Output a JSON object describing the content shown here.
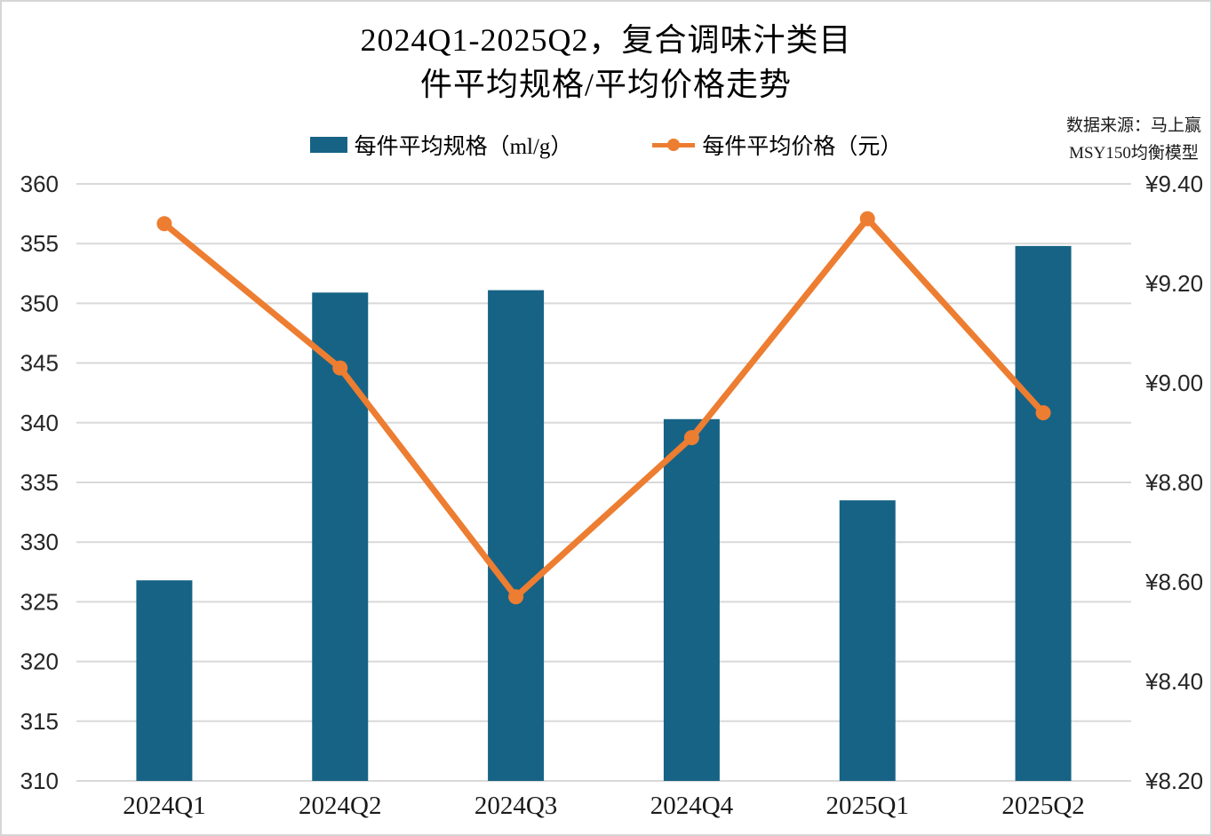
{
  "title": {
    "line1": "2024Q1-2025Q2，复合调味汁类目",
    "line2": "件平均规格/平均价格走势"
  },
  "source": {
    "line1": "数据来源：马上赢",
    "line2": "MSY150均衡模型"
  },
  "legend": [
    {
      "label": "每件平均规格（ml/g）",
      "swatch": "bar-swatch",
      "color": "#176385"
    },
    {
      "label": "每件平均价格（元）",
      "swatch": "line-dot-swatch",
      "color": "#ED7D31"
    }
  ],
  "chart_data": {
    "type": "bar+line combo",
    "title": "2024Q1-2025Q2，复合调味汁类目 件平均规格/平均价格走势",
    "categories": [
      "2024Q1",
      "2024Q2",
      "2024Q3",
      "2024Q4",
      "2025Q1",
      "2025Q2"
    ],
    "series": [
      {
        "name": "每件平均规格（ml/g）",
        "type": "bar",
        "axis": "left",
        "color": "#176385",
        "values": [
          326.8,
          350.9,
          351.1,
          340.3,
          333.5,
          354.8
        ]
      },
      {
        "name": "每件平均价格（元）",
        "type": "line",
        "axis": "right",
        "color": "#ED7D31",
        "values": [
          9.32,
          9.03,
          8.57,
          8.89,
          9.33,
          8.94
        ]
      }
    ],
    "left_axis": {
      "min": 310,
      "max": 360,
      "step": 5,
      "tick_labels": [
        "310",
        "315",
        "320",
        "325",
        "330",
        "335",
        "340",
        "345",
        "350",
        "355",
        "360"
      ]
    },
    "right_axis": {
      "min": 8.2,
      "max": 9.4,
      "step": 0.2,
      "tick_labels": [
        "¥8.20",
        "¥8.40",
        "¥8.60",
        "¥8.80",
        "¥9.00",
        "¥9.20",
        "¥9.40"
      ]
    },
    "grid": true,
    "legend_position": "top-center",
    "colors": {
      "grid": "#d9d9d9",
      "bar": "#176385",
      "line": "#ED7D31"
    }
  }
}
